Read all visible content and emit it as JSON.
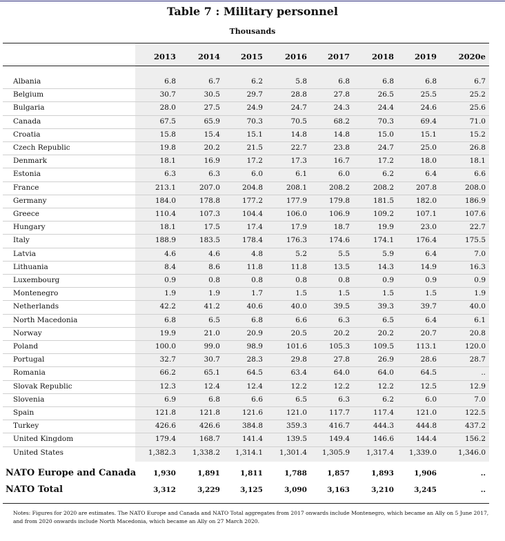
{
  "title": "Table 7 : Military personnel",
  "subtitle": "Thousands",
  "years": [
    "2013",
    "2014",
    "2015",
    "2016",
    "2017",
    "2018",
    "2019",
    "2020e"
  ],
  "rows": [
    {
      "country": "Albania",
      "values": [
        "6.8",
        "6.7",
        "6.2",
        "5.8",
        "6.8",
        "6.8",
        "6.8",
        "6.7"
      ]
    },
    {
      "country": "Belgium",
      "values": [
        "30.7",
        "30.5",
        "29.7",
        "28.8",
        "27.8",
        "26.5",
        "25.5",
        "25.2"
      ]
    },
    {
      "country": "Bulgaria",
      "values": [
        "28.0",
        "27.5",
        "24.9",
        "24.7",
        "24.3",
        "24.4",
        "24.6",
        "25.6"
      ]
    },
    {
      "country": "Canada",
      "values": [
        "67.5",
        "65.9",
        "70.3",
        "70.5",
        "68.2",
        "70.3",
        "69.4",
        "71.0"
      ]
    },
    {
      "country": "Croatia",
      "values": [
        "15.8",
        "15.4",
        "15.1",
        "14.8",
        "14.8",
        "15.0",
        "15.1",
        "15.2"
      ]
    },
    {
      "country": "Czech Republic",
      "values": [
        "19.8",
        "20.2",
        "21.5",
        "22.7",
        "23.8",
        "24.7",
        "25.0",
        "26.8"
      ]
    },
    {
      "country": "Denmark",
      "values": [
        "18.1",
        "16.9",
        "17.2",
        "17.3",
        "16.7",
        "17.2",
        "18.0",
        "18.1"
      ]
    },
    {
      "country": "Estonia",
      "values": [
        "6.3",
        "6.3",
        "6.0",
        "6.1",
        "6.0",
        "6.2",
        "6.4",
        "6.6"
      ]
    },
    {
      "country": "France",
      "values": [
        "213.1",
        "207.0",
        "204.8",
        "208.1",
        "208.2",
        "208.2",
        "207.8",
        "208.0"
      ]
    },
    {
      "country": "Germany",
      "values": [
        "184.0",
        "178.8",
        "177.2",
        "177.9",
        "179.8",
        "181.5",
        "182.0",
        "186.9"
      ]
    },
    {
      "country": "Greece",
      "values": [
        "110.4",
        "107.3",
        "104.4",
        "106.0",
        "106.9",
        "109.2",
        "107.1",
        "107.6"
      ]
    },
    {
      "country": "Hungary",
      "values": [
        "18.1",
        "17.5",
        "17.4",
        "17.9",
        "18.7",
        "19.9",
        "23.0",
        "22.7"
      ]
    },
    {
      "country": "Italy",
      "values": [
        "188.9",
        "183.5",
        "178.4",
        "176.3",
        "174.6",
        "174.1",
        "176.4",
        "175.5"
      ]
    },
    {
      "country": "Latvia",
      "values": [
        "4.6",
        "4.6",
        "4.8",
        "5.2",
        "5.5",
        "5.9",
        "6.4",
        "7.0"
      ]
    },
    {
      "country": "Lithuania",
      "values": [
        "8.4",
        "8.6",
        "11.8",
        "11.8",
        "13.5",
        "14.3",
        "14.9",
        "16.3"
      ]
    },
    {
      "country": "Luxembourg",
      "values": [
        "0.9",
        "0.8",
        "0.8",
        "0.8",
        "0.8",
        "0.9",
        "0.9",
        "0.9"
      ]
    },
    {
      "country": "Montenegro",
      "values": [
        "1.9",
        "1.9",
        "1.7",
        "1.5",
        "1.5",
        "1.5",
        "1.5",
        "1.9"
      ]
    },
    {
      "country": "Netherlands",
      "values": [
        "42.2",
        "41.2",
        "40.6",
        "40.0",
        "39.5",
        "39.3",
        "39.7",
        "40.0"
      ]
    },
    {
      "country": "North Macedonia",
      "values": [
        "6.8",
        "6.5",
        "6.8",
        "6.6",
        "6.3",
        "6.5",
        "6.4",
        "6.1"
      ]
    },
    {
      "country": "Norway",
      "values": [
        "19.9",
        "21.0",
        "20.9",
        "20.5",
        "20.2",
        "20.2",
        "20.7",
        "20.8"
      ]
    },
    {
      "country": "Poland",
      "values": [
        "100.0",
        "99.0",
        "98.9",
        "101.6",
        "105.3",
        "109.5",
        "113.1",
        "120.0"
      ]
    },
    {
      "country": "Portugal",
      "values": [
        "32.7",
        "30.7",
        "28.3",
        "29.8",
        "27.8",
        "26.9",
        "28.6",
        "28.7"
      ]
    },
    {
      "country": "Romania",
      "values": [
        "66.2",
        "65.1",
        "64.5",
        "63.4",
        "64.0",
        "64.0",
        "64.5",
        ".."
      ]
    },
    {
      "country": "Slovak Republic",
      "values": [
        "12.3",
        "12.4",
        "12.4",
        "12.2",
        "12.2",
        "12.2",
        "12.5",
        "12.9"
      ]
    },
    {
      "country": "Slovenia",
      "values": [
        "6.9",
        "6.8",
        "6.6",
        "6.5",
        "6.3",
        "6.2",
        "6.0",
        "7.0"
      ]
    },
    {
      "country": "Spain",
      "values": [
        "121.8",
        "121.8",
        "121.6",
        "121.0",
        "117.7",
        "117.4",
        "121.0",
        "122.5"
      ]
    },
    {
      "country": "Turkey",
      "values": [
        "426.6",
        "426.6",
        "384.8",
        "359.3",
        "416.7",
        "444.3",
        "444.8",
        "437.2"
      ]
    },
    {
      "country": "United Kingdom",
      "values": [
        "179.4",
        "168.7",
        "141.4",
        "139.5",
        "149.4",
        "146.6",
        "144.4",
        "156.2"
      ]
    },
    {
      "country": "United States",
      "values": [
        "1,382.3",
        "1,338.2",
        "1,314.1",
        "1,301.4",
        "1,305.9",
        "1,317.4",
        "1,339.0",
        "1,346.0"
      ]
    }
  ],
  "totals": [
    {
      "label": "NATO Europe and Canada",
      "values": [
        "1,930",
        "1,891",
        "1,811",
        "1,788",
        "1,857",
        "1,893",
        "1,906",
        ".."
      ]
    },
    {
      "label": "NATO Total",
      "values": [
        "3,312",
        "3,229",
        "3,125",
        "3,090",
        "3,163",
        "3,210",
        "3,245",
        ".."
      ]
    }
  ],
  "notes": "Notes: Figures for 2020 are estimates. The NATO Europe and Canada and NATO Total aggregates from 2017 onwards include Montenegro, which became an Ally on 5 June 2017, and from 2020 onwards include North Macedonia, which became an Ally on 27 March 2020."
}
